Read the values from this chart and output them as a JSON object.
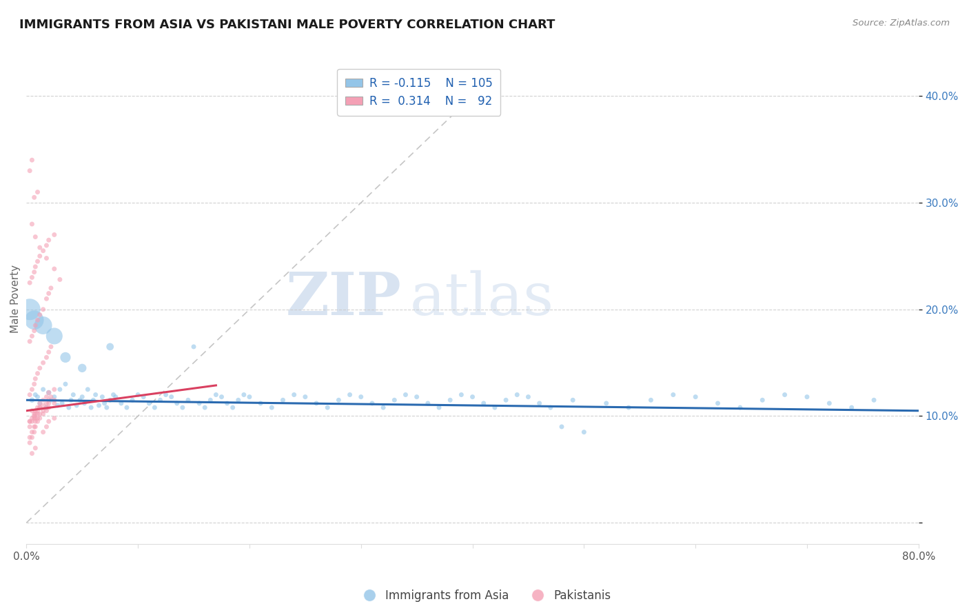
{
  "title": "IMMIGRANTS FROM ASIA VS PAKISTANI MALE POVERTY CORRELATION CHART",
  "source": "Source: ZipAtlas.com",
  "ylabel": "Male Poverty",
  "watermark_zip": "ZIP",
  "watermark_atlas": "atlas",
  "xlim": [
    0.0,
    0.8
  ],
  "ylim": [
    -0.02,
    0.44
  ],
  "blue_color": "#94c5e8",
  "pink_color": "#f4a0b5",
  "blue_line_color": "#2a6ab0",
  "pink_line_color": "#d94060",
  "blue_scatter_alpha": 0.6,
  "pink_scatter_alpha": 0.6,
  "background_color": "#ffffff",
  "grid_color": "#cccccc",
  "title_color": "#1a1a1a",
  "blue_data_x": [
    0.005,
    0.008,
    0.01,
    0.012,
    0.015,
    0.018,
    0.02,
    0.022,
    0.025,
    0.028,
    0.03,
    0.032,
    0.035,
    0.038,
    0.04,
    0.042,
    0.045,
    0.048,
    0.05,
    0.052,
    0.055,
    0.058,
    0.06,
    0.062,
    0.065,
    0.068,
    0.07,
    0.072,
    0.075,
    0.078,
    0.08,
    0.085,
    0.09,
    0.095,
    0.1,
    0.105,
    0.11,
    0.115,
    0.12,
    0.125,
    0.13,
    0.135,
    0.14,
    0.145,
    0.15,
    0.155,
    0.16,
    0.165,
    0.17,
    0.175,
    0.18,
    0.185,
    0.19,
    0.195,
    0.2,
    0.21,
    0.22,
    0.23,
    0.24,
    0.25,
    0.26,
    0.27,
    0.28,
    0.29,
    0.3,
    0.31,
    0.32,
    0.33,
    0.34,
    0.35,
    0.36,
    0.37,
    0.38,
    0.39,
    0.4,
    0.41,
    0.42,
    0.43,
    0.44,
    0.45,
    0.46,
    0.47,
    0.48,
    0.49,
    0.5,
    0.52,
    0.54,
    0.56,
    0.58,
    0.6,
    0.62,
    0.64,
    0.66,
    0.68,
    0.7,
    0.72,
    0.74,
    0.76,
    0.003,
    0.007,
    0.015,
    0.025,
    0.035,
    0.05,
    0.075
  ],
  "blue_data_y": [
    0.115,
    0.12,
    0.118,
    0.112,
    0.125,
    0.108,
    0.122,
    0.115,
    0.118,
    0.11,
    0.125,
    0.112,
    0.13,
    0.108,
    0.115,
    0.12,
    0.11,
    0.115,
    0.118,
    0.112,
    0.125,
    0.108,
    0.115,
    0.12,
    0.11,
    0.118,
    0.112,
    0.108,
    0.115,
    0.12,
    0.118,
    0.112,
    0.108,
    0.115,
    0.12,
    0.118,
    0.112,
    0.108,
    0.115,
    0.12,
    0.118,
    0.112,
    0.108,
    0.115,
    0.165,
    0.112,
    0.108,
    0.115,
    0.12,
    0.118,
    0.112,
    0.108,
    0.115,
    0.12,
    0.118,
    0.112,
    0.108,
    0.115,
    0.12,
    0.118,
    0.112,
    0.108,
    0.115,
    0.12,
    0.118,
    0.112,
    0.108,
    0.115,
    0.12,
    0.118,
    0.112,
    0.108,
    0.115,
    0.12,
    0.118,
    0.112,
    0.108,
    0.115,
    0.12,
    0.118,
    0.112,
    0.108,
    0.09,
    0.115,
    0.085,
    0.112,
    0.108,
    0.115,
    0.12,
    0.118,
    0.112,
    0.108,
    0.115,
    0.12,
    0.118,
    0.112,
    0.108,
    0.115,
    0.2,
    0.19,
    0.185,
    0.175,
    0.155,
    0.145,
    0.165
  ],
  "blue_data_size": [
    30,
    25,
    25,
    25,
    25,
    25,
    30,
    25,
    25,
    25,
    25,
    25,
    25,
    25,
    25,
    25,
    25,
    25,
    25,
    25,
    25,
    25,
    25,
    25,
    25,
    25,
    25,
    25,
    25,
    25,
    25,
    25,
    25,
    25,
    25,
    25,
    25,
    25,
    25,
    25,
    25,
    25,
    25,
    25,
    25,
    25,
    25,
    25,
    25,
    25,
    25,
    25,
    25,
    25,
    25,
    25,
    25,
    25,
    25,
    25,
    25,
    25,
    25,
    25,
    25,
    25,
    25,
    25,
    25,
    25,
    25,
    25,
    25,
    25,
    25,
    25,
    25,
    25,
    25,
    25,
    25,
    25,
    25,
    25,
    25,
    25,
    25,
    25,
    25,
    25,
    25,
    25,
    25,
    25,
    25,
    25,
    25,
    25,
    500,
    400,
    350,
    300,
    120,
    80,
    60
  ],
  "pink_data_x": [
    0.003,
    0.005,
    0.007,
    0.008,
    0.01,
    0.012,
    0.015,
    0.018,
    0.02,
    0.022,
    0.003,
    0.005,
    0.007,
    0.008,
    0.01,
    0.012,
    0.015,
    0.018,
    0.02,
    0.022,
    0.003,
    0.005,
    0.007,
    0.008,
    0.01,
    0.012,
    0.015,
    0.018,
    0.02,
    0.022,
    0.003,
    0.005,
    0.007,
    0.008,
    0.01,
    0.012,
    0.015,
    0.018,
    0.02,
    0.025,
    0.003,
    0.005,
    0.007,
    0.008,
    0.01,
    0.012,
    0.015,
    0.018,
    0.02,
    0.025,
    0.003,
    0.005,
    0.007,
    0.008,
    0.01,
    0.012,
    0.015,
    0.018,
    0.02,
    0.025,
    0.003,
    0.005,
    0.007,
    0.008,
    0.01,
    0.012,
    0.015,
    0.018,
    0.02,
    0.025,
    0.003,
    0.005,
    0.007,
    0.008,
    0.01,
    0.012,
    0.015,
    0.018,
    0.02,
    0.025,
    0.003,
    0.005,
    0.007,
    0.01,
    0.005,
    0.008,
    0.012,
    0.018,
    0.025,
    0.03,
    0.005,
    0.008
  ],
  "pink_data_y": [
    0.095,
    0.105,
    0.1,
    0.098,
    0.102,
    0.108,
    0.11,
    0.112,
    0.115,
    0.118,
    0.12,
    0.125,
    0.13,
    0.135,
    0.14,
    0.145,
    0.15,
    0.155,
    0.16,
    0.165,
    0.17,
    0.175,
    0.18,
    0.185,
    0.19,
    0.195,
    0.2,
    0.21,
    0.215,
    0.22,
    0.225,
    0.23,
    0.235,
    0.24,
    0.245,
    0.25,
    0.255,
    0.26,
    0.265,
    0.27,
    0.095,
    0.098,
    0.102,
    0.105,
    0.108,
    0.112,
    0.115,
    0.118,
    0.122,
    0.125,
    0.09,
    0.095,
    0.098,
    0.102,
    0.105,
    0.108,
    0.085,
    0.09,
    0.095,
    0.098,
    0.08,
    0.085,
    0.09,
    0.095,
    0.098,
    0.102,
    0.105,
    0.108,
    0.112,
    0.115,
    0.075,
    0.08,
    0.085,
    0.09,
    0.095,
    0.098,
    0.102,
    0.105,
    0.108,
    0.112,
    0.33,
    0.34,
    0.305,
    0.31,
    0.28,
    0.268,
    0.258,
    0.248,
    0.238,
    0.228,
    0.065,
    0.07
  ],
  "pink_data_size": [
    25,
    25,
    25,
    25,
    25,
    25,
    25,
    25,
    25,
    25,
    25,
    25,
    25,
    25,
    25,
    25,
    25,
    25,
    25,
    25,
    25,
    25,
    25,
    25,
    25,
    25,
    25,
    25,
    25,
    25,
    25,
    25,
    25,
    25,
    25,
    25,
    25,
    25,
    25,
    25,
    25,
    25,
    25,
    25,
    25,
    25,
    25,
    25,
    25,
    25,
    25,
    25,
    25,
    25,
    25,
    25,
    25,
    25,
    25,
    25,
    25,
    25,
    25,
    25,
    25,
    25,
    25,
    25,
    25,
    25,
    25,
    25,
    25,
    25,
    25,
    25,
    25,
    25,
    25,
    25,
    25,
    25,
    25,
    25,
    25,
    25,
    25,
    25,
    25,
    25,
    25,
    25
  ]
}
